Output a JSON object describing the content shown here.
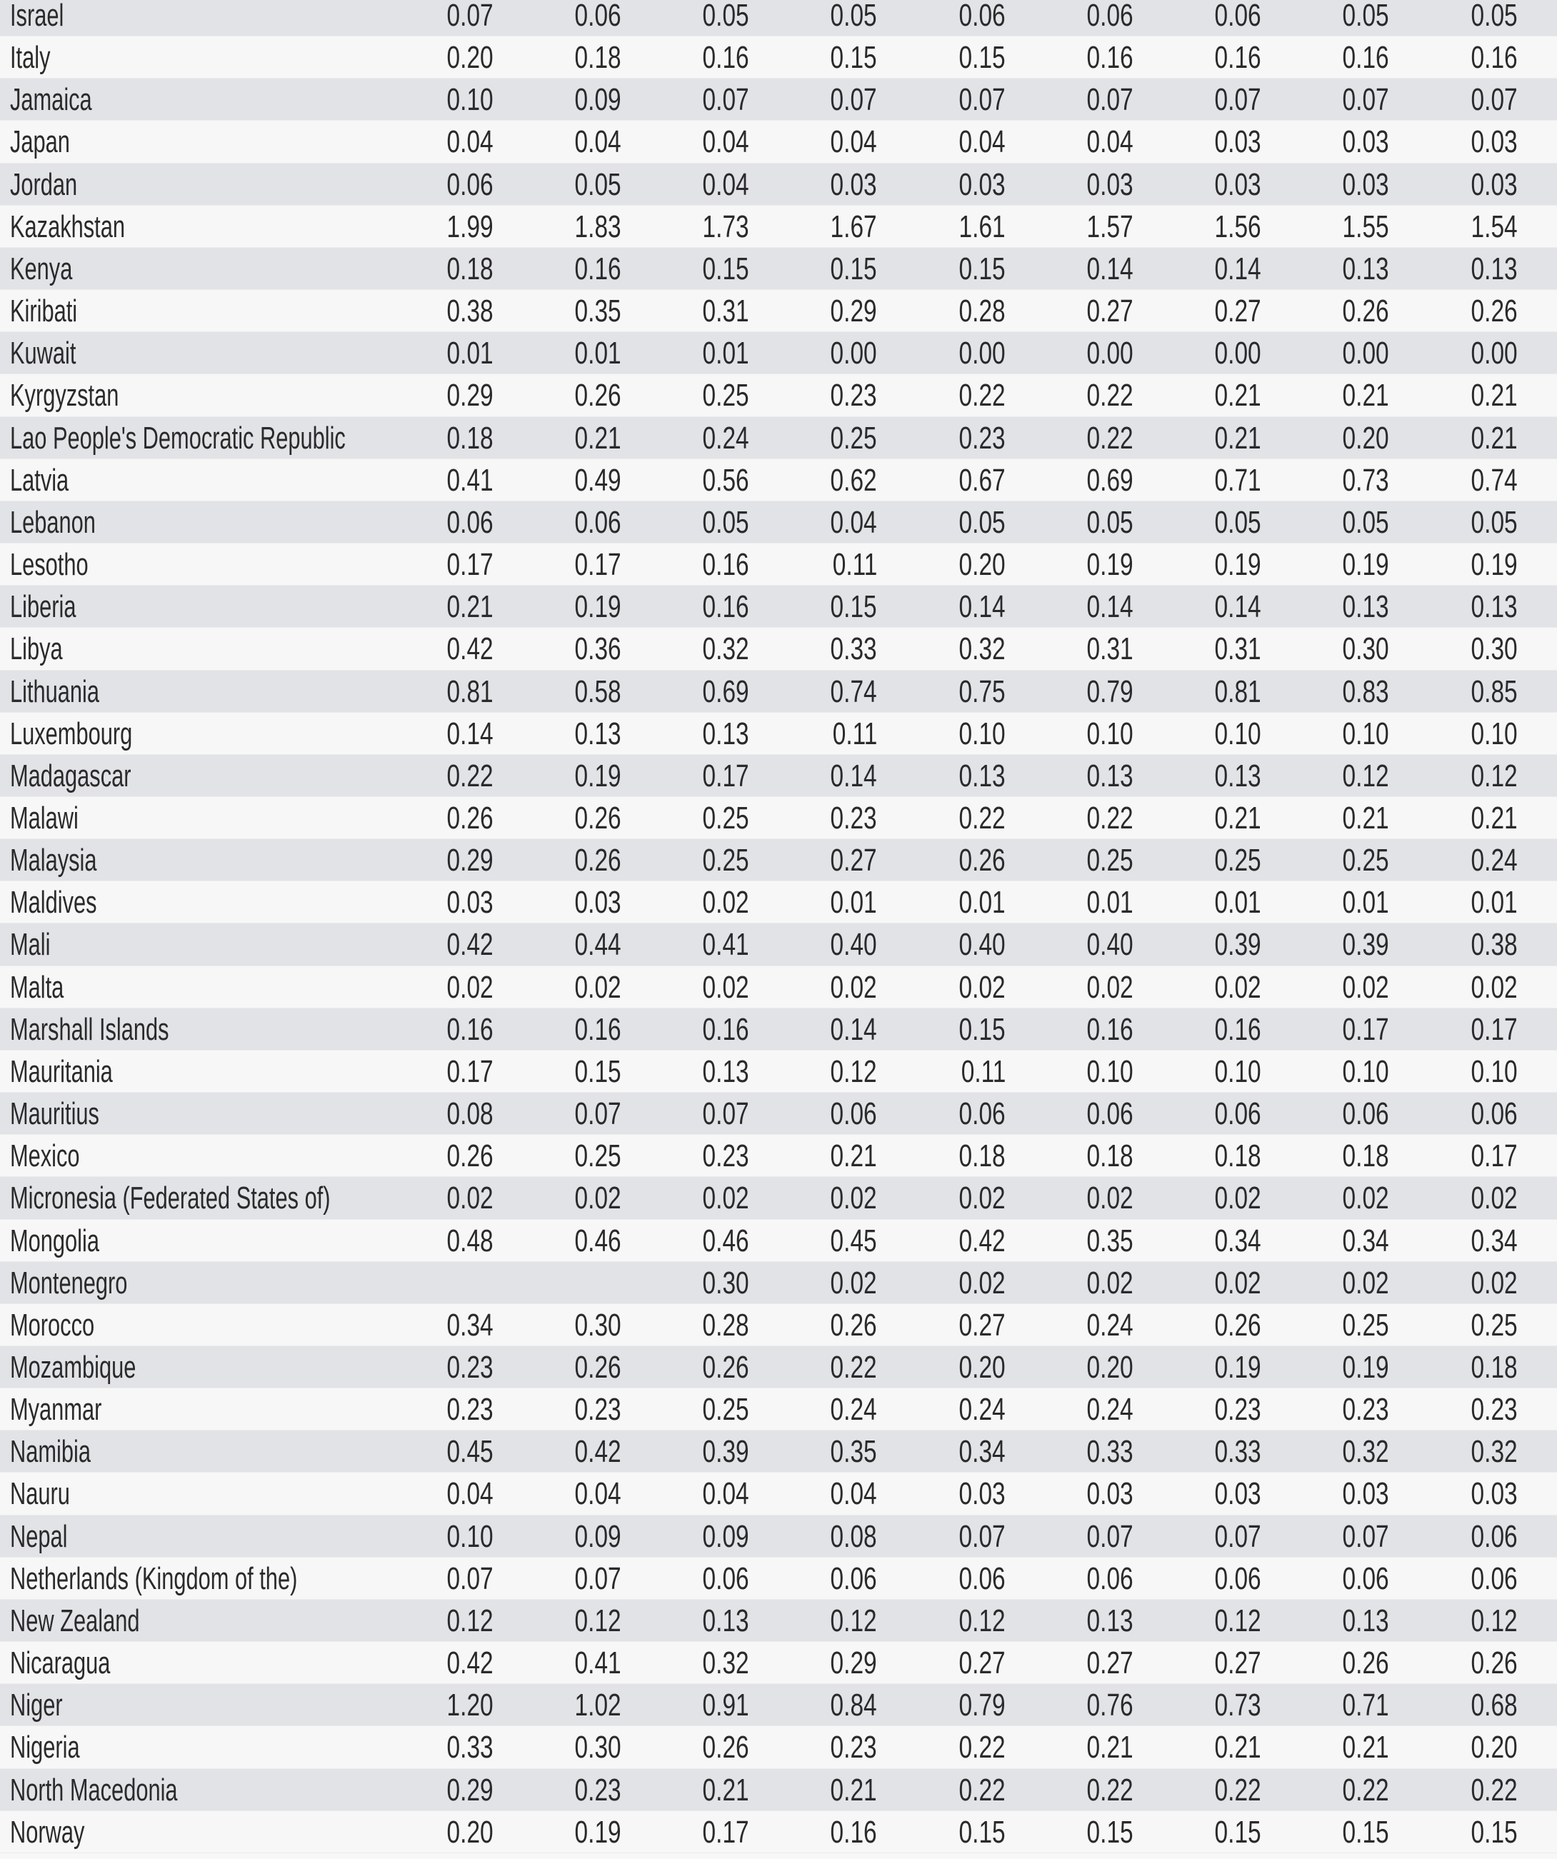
{
  "rows": [
    {
      "country": "Israel",
      "values": [
        "0.07",
        "0.06",
        "0.05",
        "0.05",
        "0.06",
        "0.06",
        "0.06",
        "0.05",
        "0.05"
      ]
    },
    {
      "country": "Italy",
      "values": [
        "0.20",
        "0.18",
        "0.16",
        "0.15",
        "0.15",
        "0.16",
        "0.16",
        "0.16",
        "0.16"
      ]
    },
    {
      "country": "Jamaica",
      "values": [
        "0.10",
        "0.09",
        "0.07",
        "0.07",
        "0.07",
        "0.07",
        "0.07",
        "0.07",
        "0.07"
      ]
    },
    {
      "country": "Japan",
      "values": [
        "0.04",
        "0.04",
        "0.04",
        "0.04",
        "0.04",
        "0.04",
        "0.03",
        "0.03",
        "0.03"
      ]
    },
    {
      "country": "Jordan",
      "values": [
        "0.06",
        "0.05",
        "0.04",
        "0.03",
        "0.03",
        "0.03",
        "0.03",
        "0.03",
        "0.03"
      ]
    },
    {
      "country": "Kazakhstan",
      "values": [
        "1.99",
        "1.83",
        "1.73",
        "1.67",
        "1.61",
        "1.57",
        "1.56",
        "1.55",
        "1.54"
      ]
    },
    {
      "country": "Kenya",
      "values": [
        "0.18",
        "0.16",
        "0.15",
        "0.15",
        "0.15",
        "0.14",
        "0.14",
        "0.13",
        "0.13"
      ]
    },
    {
      "country": "Kiribati",
      "values": [
        "0.38",
        "0.35",
        "0.31",
        "0.29",
        "0.28",
        "0.27",
        "0.27",
        "0.26",
        "0.26"
      ]
    },
    {
      "country": "Kuwait",
      "values": [
        "0.01",
        "0.01",
        "0.01",
        "0.00",
        "0.00",
        "0.00",
        "0.00",
        "0.00",
        "0.00"
      ]
    },
    {
      "country": "Kyrgyzstan",
      "values": [
        "0.29",
        "0.26",
        "0.25",
        "0.23",
        "0.22",
        "0.22",
        "0.21",
        "0.21",
        "0.21"
      ]
    },
    {
      "country": "Lao People's Democratic Republic",
      "values": [
        "0.18",
        "0.21",
        "0.24",
        "0.25",
        "0.23",
        "0.22",
        "0.21",
        "0.20",
        "0.21"
      ]
    },
    {
      "country": "Latvia",
      "values": [
        "0.41",
        "0.49",
        "0.56",
        "0.62",
        "0.67",
        "0.69",
        "0.71",
        "0.73",
        "0.74"
      ]
    },
    {
      "country": "Lebanon",
      "values": [
        "0.06",
        "0.06",
        "0.05",
        "0.04",
        "0.05",
        "0.05",
        "0.05",
        "0.05",
        "0.05"
      ]
    },
    {
      "country": "Lesotho",
      "values": [
        "0.17",
        "0.17",
        "0.16",
        "0.11",
        "0.20",
        "0.19",
        "0.19",
        "0.19",
        "0.19"
      ]
    },
    {
      "country": "Liberia",
      "values": [
        "0.21",
        "0.19",
        "0.16",
        "0.15",
        "0.14",
        "0.14",
        "0.14",
        "0.13",
        "0.13"
      ]
    },
    {
      "country": "Libya",
      "values": [
        "0.42",
        "0.36",
        "0.32",
        "0.33",
        "0.32",
        "0.31",
        "0.31",
        "0.30",
        "0.30"
      ]
    },
    {
      "country": "Lithuania",
      "values": [
        "0.81",
        "0.58",
        "0.69",
        "0.74",
        "0.75",
        "0.79",
        "0.81",
        "0.83",
        "0.85"
      ]
    },
    {
      "country": "Luxembourg",
      "values": [
        "0.14",
        "0.13",
        "0.13",
        "0.11",
        "0.10",
        "0.10",
        "0.10",
        "0.10",
        "0.10"
      ]
    },
    {
      "country": "Madagascar",
      "values": [
        "0.22",
        "0.19",
        "0.17",
        "0.14",
        "0.13",
        "0.13",
        "0.13",
        "0.12",
        "0.12"
      ]
    },
    {
      "country": "Malawi",
      "values": [
        "0.26",
        "0.26",
        "0.25",
        "0.23",
        "0.22",
        "0.22",
        "0.21",
        "0.21",
        "0.21"
      ]
    },
    {
      "country": "Malaysia",
      "values": [
        "0.29",
        "0.26",
        "0.25",
        "0.27",
        "0.26",
        "0.25",
        "0.25",
        "0.25",
        "0.24"
      ]
    },
    {
      "country": "Maldives",
      "values": [
        "0.03",
        "0.03",
        "0.02",
        "0.01",
        "0.01",
        "0.01",
        "0.01",
        "0.01",
        "0.01"
      ]
    },
    {
      "country": "Mali",
      "values": [
        "0.42",
        "0.44",
        "0.41",
        "0.40",
        "0.40",
        "0.40",
        "0.39",
        "0.39",
        "0.38"
      ]
    },
    {
      "country": "Malta",
      "values": [
        "0.02",
        "0.02",
        "0.02",
        "0.02",
        "0.02",
        "0.02",
        "0.02",
        "0.02",
        "0.02"
      ]
    },
    {
      "country": "Marshall Islands",
      "values": [
        "0.16",
        "0.16",
        "0.16",
        "0.14",
        "0.15",
        "0.16",
        "0.16",
        "0.17",
        "0.17"
      ]
    },
    {
      "country": "Mauritania",
      "values": [
        "0.17",
        "0.15",
        "0.13",
        "0.12",
        "0.11",
        "0.10",
        "0.10",
        "0.10",
        "0.10"
      ]
    },
    {
      "country": "Mauritius",
      "values": [
        "0.08",
        "0.07",
        "0.07",
        "0.06",
        "0.06",
        "0.06",
        "0.06",
        "0.06",
        "0.06"
      ]
    },
    {
      "country": "Mexico",
      "values": [
        "0.26",
        "0.25",
        "0.23",
        "0.21",
        "0.18",
        "0.18",
        "0.18",
        "0.18",
        "0.17"
      ]
    },
    {
      "country": "Micronesia (Federated States of)",
      "values": [
        "0.02",
        "0.02",
        "0.02",
        "0.02",
        "0.02",
        "0.02",
        "0.02",
        "0.02",
        "0.02"
      ]
    },
    {
      "country": "Mongolia",
      "values": [
        "0.48",
        "0.46",
        "0.46",
        "0.45",
        "0.42",
        "0.35",
        "0.34",
        "0.34",
        "0.34"
      ]
    },
    {
      "country": "Montenegro",
      "values": [
        "",
        "",
        "0.30",
        "0.02",
        "0.02",
        "0.02",
        "0.02",
        "0.02",
        "0.02"
      ]
    },
    {
      "country": "Morocco",
      "values": [
        "0.34",
        "0.30",
        "0.28",
        "0.26",
        "0.27",
        "0.24",
        "0.26",
        "0.25",
        "0.25"
      ]
    },
    {
      "country": "Mozambique",
      "values": [
        "0.23",
        "0.26",
        "0.26",
        "0.22",
        "0.20",
        "0.20",
        "0.19",
        "0.19",
        "0.18"
      ]
    },
    {
      "country": "Myanmar",
      "values": [
        "0.23",
        "0.23",
        "0.25",
        "0.24",
        "0.24",
        "0.24",
        "0.23",
        "0.23",
        "0.23"
      ]
    },
    {
      "country": "Namibia",
      "values": [
        "0.45",
        "0.42",
        "0.39",
        "0.35",
        "0.34",
        "0.33",
        "0.33",
        "0.32",
        "0.32"
      ]
    },
    {
      "country": "Nauru",
      "values": [
        "0.04",
        "0.04",
        "0.04",
        "0.04",
        "0.03",
        "0.03",
        "0.03",
        "0.03",
        "0.03"
      ]
    },
    {
      "country": "Nepal",
      "values": [
        "0.10",
        "0.09",
        "0.09",
        "0.08",
        "0.07",
        "0.07",
        "0.07",
        "0.07",
        "0.06"
      ]
    },
    {
      "country": "Netherlands (Kingdom of the)",
      "values": [
        "0.07",
        "0.07",
        "0.06",
        "0.06",
        "0.06",
        "0.06",
        "0.06",
        "0.06",
        "0.06"
      ]
    },
    {
      "country": "New Zealand",
      "values": [
        "0.12",
        "0.12",
        "0.13",
        "0.12",
        "0.12",
        "0.13",
        "0.12",
        "0.13",
        "0.12"
      ]
    },
    {
      "country": "Nicaragua",
      "values": [
        "0.42",
        "0.41",
        "0.32",
        "0.29",
        "0.27",
        "0.27",
        "0.27",
        "0.26",
        "0.26"
      ]
    },
    {
      "country": "Niger",
      "values": [
        "1.20",
        "1.02",
        "0.91",
        "0.84",
        "0.79",
        "0.76",
        "0.73",
        "0.71",
        "0.68"
      ]
    },
    {
      "country": "Nigeria",
      "values": [
        "0.33",
        "0.30",
        "0.26",
        "0.23",
        "0.22",
        "0.21",
        "0.21",
        "0.21",
        "0.20"
      ]
    },
    {
      "country": "North Macedonia",
      "values": [
        "0.29",
        "0.23",
        "0.21",
        "0.21",
        "0.22",
        "0.22",
        "0.22",
        "0.22",
        "0.22"
      ]
    },
    {
      "country": "Norway",
      "values": [
        "0.20",
        "0.19",
        "0.17",
        "0.16",
        "0.15",
        "0.15",
        "0.15",
        "0.15",
        "0.15"
      ]
    }
  ]
}
